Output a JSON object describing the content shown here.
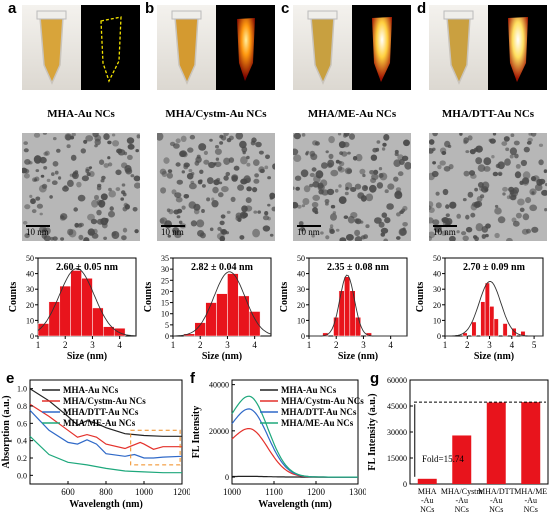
{
  "panels": [
    {
      "letter": "a",
      "caption": "MHA-Au NCs",
      "scale": "10 nm",
      "size_text": "2.60 ± 0.05 nm",
      "glow": "none"
    },
    {
      "letter": "b",
      "caption": "MHA/Cystm-Au NCs",
      "scale": "10 nm",
      "size_text": "2.82 ± 0.04 nm",
      "glow": "medium"
    },
    {
      "letter": "c",
      "caption": "MHA/ME-Au NCs",
      "scale": "10 nm",
      "size_text": "2.35 ± 0.08 nm",
      "glow": "strong"
    },
    {
      "letter": "d",
      "caption": "MHA/DTT-Au NCs",
      "scale": "10 nm",
      "size_text": "2.70 ± 0.09 nm",
      "glow": "strong"
    }
  ],
  "bottom_letters": {
    "e": "e",
    "f": "f",
    "g": "g"
  },
  "hist_axis": {
    "xlabel": "Size (nm)",
    "ylabel": "Counts"
  },
  "chart_data": [
    {
      "id": "hist-a",
      "type": "bar",
      "title": "2.60 ± 0.05 nm",
      "xlabel": "Size (nm)",
      "ylabel": "Counts",
      "x": [
        1.2,
        1.6,
        2.0,
        2.4,
        2.8,
        3.2,
        3.6,
        4.0
      ],
      "values": [
        8,
        22,
        32,
        42,
        37,
        18,
        6,
        5
      ],
      "ylim": [
        0,
        50
      ],
      "xlim": [
        1,
        4.6
      ],
      "xticks": [
        1,
        2,
        3,
        4
      ],
      "yticks": [
        0,
        10,
        20,
        30,
        40,
        50
      ]
    },
    {
      "id": "hist-b",
      "type": "bar",
      "title": "2.82 ± 0.04 nm",
      "xlabel": "Size (nm)",
      "ylabel": "Counts",
      "x": [
        1.6,
        2.0,
        2.4,
        2.8,
        3.2,
        3.6,
        4.0
      ],
      "values": [
        1,
        6,
        15,
        19,
        28,
        18,
        11
      ],
      "ylim": [
        0,
        35
      ],
      "xlim": [
        1,
        4.6
      ],
      "xticks": [
        1,
        2,
        3,
        4
      ],
      "yticks": [
        0,
        5,
        10,
        15,
        20,
        25,
        30,
        35
      ]
    },
    {
      "id": "hist-c",
      "type": "bar",
      "title": "2.35 ± 0.08 nm",
      "xlabel": "Size (nm)",
      "ylabel": "Counts",
      "x": [
        1.6,
        2.0,
        2.2,
        2.4,
        2.6,
        2.8,
        3.2
      ],
      "values": [
        2,
        12,
        29,
        38,
        29,
        12,
        2
      ],
      "ylim": [
        0,
        50
      ],
      "xlim": [
        1,
        4.6
      ],
      "xticks": [
        1,
        2,
        3,
        4
      ],
      "yticks": [
        0,
        10,
        20,
        30,
        40,
        50
      ]
    },
    {
      "id": "hist-d",
      "type": "bar",
      "title": "2.70 ± 0.09 nm",
      "xlabel": "Size (nm)",
      "ylabel": "Counts",
      "x": [
        1.9,
        2.3,
        2.7,
        2.9,
        3.1,
        3.3,
        3.7,
        4.1,
        4.5
      ],
      "values": [
        2,
        9,
        22,
        34,
        19,
        11,
        8,
        5,
        3
      ],
      "ylim": [
        0,
        50
      ],
      "xlim": [
        1,
        5.4
      ],
      "xticks": [
        1,
        2,
        3,
        4,
        5
      ],
      "yticks": [
        0,
        10,
        20,
        30,
        40,
        50
      ]
    },
    {
      "id": "abs-e",
      "type": "line",
      "xlabel": "Wavelength (nm)",
      "ylabel": "Absorption (a.u.)",
      "xlim": [
        400,
        1200
      ],
      "ylim": [
        -0.1,
        1.1
      ],
      "xticks": [
        600,
        800,
        1000,
        1200
      ],
      "yticks": [
        0.0,
        0.2,
        0.4,
        0.6,
        0.8,
        1.0
      ],
      "series": [
        {
          "name": "MHA-Au NCs",
          "color": "#222222",
          "x": [
            400,
            500,
            600,
            650,
            700,
            750,
            800,
            900,
            1000,
            1100,
            1200
          ],
          "y": [
            1.0,
            0.86,
            0.68,
            0.58,
            0.63,
            0.6,
            0.55,
            0.48,
            0.46,
            0.45,
            0.45
          ]
        },
        {
          "name": "MHA/Cystm-Au NCs",
          "color": "#e4312b",
          "x": [
            400,
            500,
            600,
            650,
            700,
            750,
            800,
            900,
            980,
            1000,
            1050,
            1100,
            1200
          ],
          "y": [
            0.82,
            0.68,
            0.52,
            0.44,
            0.47,
            0.44,
            0.36,
            0.31,
            0.38,
            0.36,
            0.3,
            0.33,
            0.33
          ]
        },
        {
          "name": "MHA/DTT-Au NCs",
          "color": "#2f69c8",
          "x": [
            400,
            500,
            600,
            650,
            700,
            750,
            800,
            900,
            950,
            1000,
            1050,
            1100,
            1200
          ],
          "y": [
            0.75,
            0.52,
            0.38,
            0.36,
            0.41,
            0.36,
            0.25,
            0.22,
            0.24,
            0.2,
            0.2,
            0.21,
            0.22
          ]
        },
        {
          "name": "MHA/ME-Au NCs",
          "color": "#1ea87c",
          "x": [
            400,
            500,
            600,
            700,
            800,
            900,
            1000,
            1100,
            1200
          ],
          "y": [
            0.45,
            0.24,
            0.15,
            0.12,
            0.08,
            0.05,
            0.04,
            0.03,
            0.03
          ]
        }
      ]
    },
    {
      "id": "fl-f",
      "type": "line",
      "xlabel": "Wavelength (nm)",
      "ylabel": "FL Intensity",
      "xlim": [
        1000,
        1300
      ],
      "ylim": [
        -3000,
        42000
      ],
      "xticks": [
        1000,
        1100,
        1200,
        1300
      ],
      "yticks": [
        0,
        20000,
        40000
      ],
      "series": [
        {
          "name": "MHA-Au NCs",
          "color": "#222222",
          "peak": 300
        },
        {
          "name": "MHA/Cystm-Au NCs",
          "color": "#e4312b",
          "peak": 21000
        },
        {
          "name": "MHA/DTT-Au NCs",
          "color": "#2f69c8",
          "peak": 29500
        },
        {
          "name": "MHA/ME-Au NCs",
          "color": "#1ea87c",
          "peak": 35000
        }
      ]
    },
    {
      "id": "bar-g",
      "type": "bar",
      "xlabel": "",
      "ylabel": "FL Intensity (a.u.)",
      "ylim": [
        0,
        60000
      ],
      "yticks": [
        0,
        15000,
        30000,
        45000,
        60000
      ],
      "categories": [
        "MHA -Au NCs",
        "MHA/Cystm -Au NCs",
        "MHA/DTT -Au NCs",
        "MHA/ME -Au NCs"
      ],
      "values": [
        3000,
        28000,
        47000,
        47200
      ],
      "annotation": "Fold=15.74",
      "color": "#e8141c"
    }
  ]
}
